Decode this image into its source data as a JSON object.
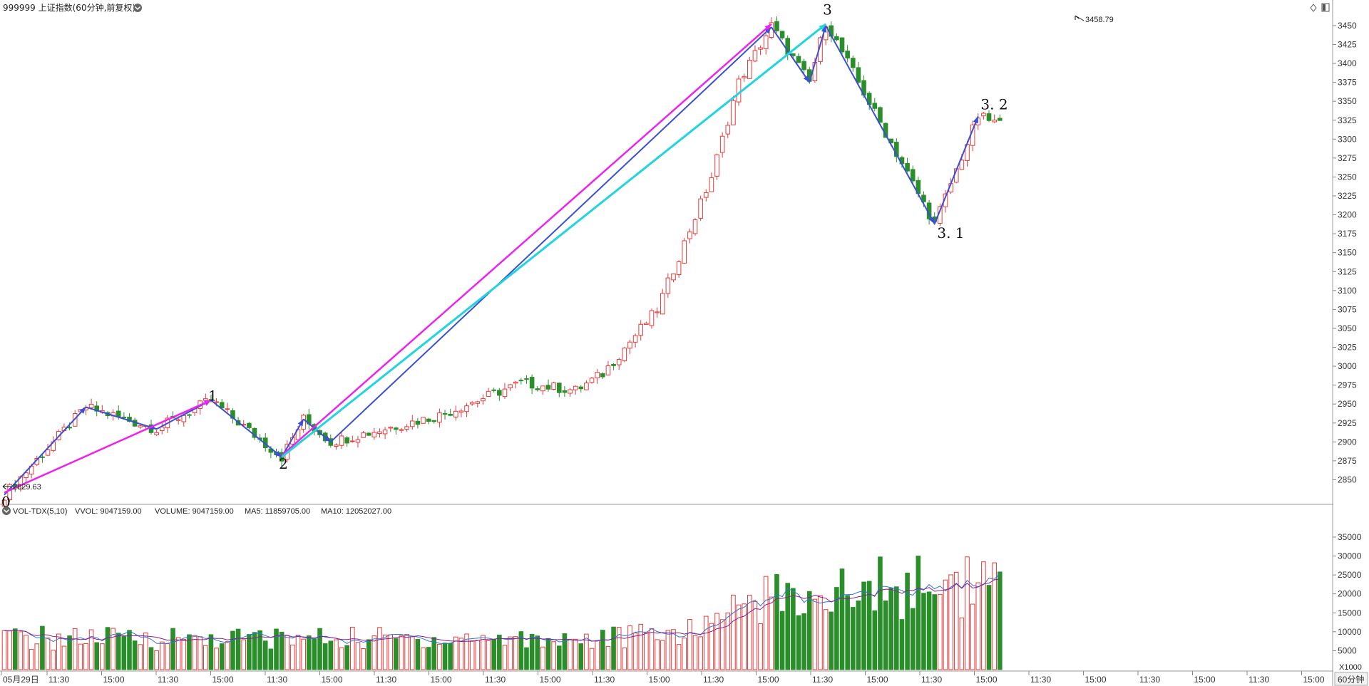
{
  "chart_data": [
    {
      "type": "candlestick",
      "title": "999999 上证指数(60分钟,前复权)",
      "period_label": "60分钟",
      "y_axis_ticks": [
        2850,
        2875,
        2900,
        2925,
        2950,
        2975,
        3000,
        3025,
        3050,
        3075,
        3100,
        3125,
        3150,
        3175,
        3200,
        3225,
        3250,
        3275,
        3300,
        3325,
        3350,
        3375,
        3400,
        3425,
        3450
      ],
      "ylim": [
        2825,
        3465
      ],
      "x_tick_labels": [
        "05月29日",
        "11:30",
        "15:00",
        "11:30",
        "15:00",
        "11:30",
        "15:00",
        "11:30",
        "15:00",
        "11:30",
        "15:00",
        "11:30",
        "15:00",
        "11:30",
        "15:00",
        "11:30",
        "15:00",
        "11:30",
        "15:00",
        "11:30",
        "15:00",
        "11:30",
        "15:00",
        "11:30",
        "15:00"
      ],
      "annotations": {
        "low_label": "2829.63",
        "high_label": "3458.79",
        "wave_labels": [
          {
            "text": "0",
            "bar": 0,
            "price": 2820
          },
          {
            "text": "1",
            "bar": 38,
            "price": 2960
          },
          {
            "text": "2",
            "bar": 51,
            "price": 2870
          },
          {
            "text": "3",
            "bar": 151,
            "price": 3470
          },
          {
            "text": "3. 1",
            "bar": 172,
            "price": 3175
          },
          {
            "text": "3. 2",
            "bar": 180,
            "price": 3345
          }
        ]
      },
      "wave_lines": [
        {
          "color": "#3a4fd6",
          "width": 2,
          "arrow": true,
          "from": [
            0,
            2830
          ],
          "to": [
            15,
            2946
          ]
        },
        {
          "color": "#3a4fd6",
          "width": 2,
          "arrow": true,
          "from": [
            15,
            2946
          ],
          "to": [
            28,
            2917
          ]
        },
        {
          "color": "#3a4fd6",
          "width": 2,
          "arrow": true,
          "from": [
            28,
            2917
          ],
          "to": [
            38,
            2955
          ]
        },
        {
          "color": "#3a4fd6",
          "width": 2,
          "arrow": true,
          "from": [
            38,
            2955
          ],
          "to": [
            51,
            2880
          ]
        },
        {
          "color": "#3a4fd6",
          "width": 2,
          "arrow": true,
          "from": [
            51,
            2880
          ],
          "to": [
            55,
            2930
          ]
        },
        {
          "color": "#3a4fd6",
          "width": 2,
          "arrow": true,
          "from": [
            55,
            2930
          ],
          "to": [
            60,
            2900
          ]
        },
        {
          "color": "#3a4fd6",
          "width": 1.5,
          "arrow": false,
          "from": [
            51,
            2880
          ],
          "to": [
            55,
            2930
          ]
        },
        {
          "color": "#3a4fd6",
          "width": 1.5,
          "arrow": false,
          "from": [
            55,
            2930
          ],
          "to": [
            60,
            2900
          ]
        },
        {
          "color": "#3a4fd6",
          "width": 2,
          "arrow": true,
          "from": [
            60,
            2900
          ],
          "to": [
            141,
            3448
          ]
        },
        {
          "color": "#3a4fd6",
          "width": 2,
          "arrow": true,
          "from": [
            141,
            3448
          ],
          "to": [
            148,
            3375
          ]
        },
        {
          "color": "#3a4fd6",
          "width": 2,
          "arrow": true,
          "from": [
            148,
            3375
          ],
          "to": [
            151,
            3450
          ]
        },
        {
          "color": "#3a4fd6",
          "width": 2,
          "arrow": true,
          "from": [
            151,
            3450
          ],
          "to": [
            171,
            3188
          ]
        },
        {
          "color": "#3a4fd6",
          "width": 2,
          "arrow": true,
          "from": [
            171,
            3188
          ],
          "to": [
            179,
            3330
          ]
        },
        {
          "color": "#ee22ee",
          "width": 2.5,
          "arrow": true,
          "from": [
            0,
            2833
          ],
          "to": [
            38,
            2955
          ]
        },
        {
          "color": "#ee22ee",
          "width": 2.5,
          "arrow": true,
          "from": [
            51,
            2882
          ],
          "to": [
            141,
            3452
          ]
        },
        {
          "color": "#22d4dd",
          "width": 3,
          "arrow": true,
          "from": [
            51,
            2880
          ],
          "to": [
            151,
            3452
          ]
        }
      ]
    },
    {
      "type": "bar",
      "title": "VOL-TDX(5,10)",
      "legend": [
        {
          "text": "VOL-TDX(5,10)",
          "color": "#222222"
        },
        {
          "text": "VVOL: 9047159.00",
          "color": "#222222"
        },
        {
          "text": "VOLUME: 9047159.00",
          "color": "#1f6fd0"
        },
        {
          "text": "MA5: 11859705.00",
          "color": "#1f6fd0"
        },
        {
          "text": "MA10: 12052027.00",
          "color": "#9a1a9a"
        }
      ],
      "y_axis_ticks": [
        5000,
        10000,
        15000,
        20000,
        25000,
        30000,
        35000
      ],
      "y_unit_label": "X1000",
      "ylim": [
        0,
        39500
      ]
    }
  ],
  "colors": {
    "up": "#e83a3a",
    "down": "#2a8f2a",
    "ma5": "#2f76d6",
    "ma10": "#8a2090",
    "grid": "#e8e8e8",
    "axis": "#888888"
  }
}
